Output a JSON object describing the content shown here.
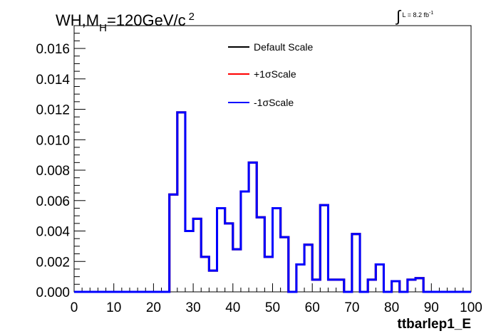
{
  "title": {
    "prefix": "WH,M",
    "subscript": "H",
    "suffix": "=120GeV/c",
    "superscript": "2"
  },
  "luminosity": {
    "integral": "∫",
    "label": "L = 8.2 fb",
    "superscript": "-1"
  },
  "colors": {
    "default": "#000000",
    "plus": "#ff0000",
    "minus": "#0000ff"
  },
  "legend": [
    {
      "label": "Default Scale",
      "color": "#000000"
    },
    {
      "label": "+1σScale",
      "color": "#ff0000"
    },
    {
      "label": "-1σScale",
      "color": "#0000ff"
    }
  ],
  "chart_data": {
    "type": "line",
    "histogram": true,
    "xlabel": "ttbarlep1_E",
    "ylabel": "",
    "xlim": [
      0,
      100
    ],
    "ylim": [
      0,
      0.0175
    ],
    "xticks": [
      "0",
      "10",
      "20",
      "30",
      "40",
      "50",
      "60",
      "70",
      "80",
      "90",
      "100"
    ],
    "yticks": [
      "0.000",
      "0.002",
      "0.004",
      "0.006",
      "0.008",
      "0.010",
      "0.012",
      "0.014",
      "0.016"
    ],
    "bin_edges": [
      0,
      2,
      4,
      6,
      8,
      10,
      12,
      14,
      16,
      18,
      20,
      22,
      24,
      26,
      28,
      30,
      32,
      34,
      36,
      38,
      40,
      42,
      44,
      46,
      48,
      50,
      52,
      54,
      56,
      58,
      60,
      62,
      64,
      66,
      68,
      70,
      72,
      74,
      76,
      78,
      80,
      82,
      84,
      86,
      88,
      90,
      92,
      94,
      96,
      98,
      100
    ],
    "series": [
      {
        "name": "Default Scale",
        "color": "#000000",
        "values": [
          0,
          0,
          0,
          0,
          0,
          0,
          0,
          0,
          0,
          0,
          0,
          0,
          0.0064,
          0.0118,
          0.004,
          0.0048,
          0.0023,
          0.0014,
          0.0055,
          0.0045,
          0.0028,
          0.0066,
          0.0085,
          0.0049,
          0.0023,
          0.0055,
          0.0036,
          0.0,
          0.0018,
          0.0031,
          0.0008,
          0.0057,
          0.0008,
          0.0008,
          0.0,
          0.0038,
          0.0,
          0.0008,
          0.0018,
          0.0,
          0.0007,
          0.0,
          0.0008,
          0.0009,
          0,
          0,
          0,
          0,
          0,
          0
        ]
      },
      {
        "name": "+1σScale",
        "color": "#ff0000",
        "values": [
          0,
          0,
          0,
          0,
          0,
          0,
          0,
          0,
          0,
          0,
          0,
          0,
          0.0064,
          0.0118,
          0.004,
          0.0048,
          0.0023,
          0.0014,
          0.0055,
          0.0045,
          0.0028,
          0.0066,
          0.0085,
          0.0049,
          0.0023,
          0.0055,
          0.0036,
          0.0,
          0.0018,
          0.0031,
          0.0008,
          0.0057,
          0.0008,
          0.0008,
          0.0,
          0.0038,
          0.0,
          0.0008,
          0.0018,
          0.0,
          0.0007,
          0.0,
          0.0008,
          0.0009,
          0,
          0,
          0,
          0,
          0,
          0
        ]
      },
      {
        "name": "-1σScale",
        "color": "#0000ff",
        "values": [
          0,
          0,
          0,
          0,
          0,
          0,
          0,
          0,
          0,
          0,
          0,
          0,
          0.0064,
          0.0118,
          0.004,
          0.0048,
          0.0023,
          0.0014,
          0.0055,
          0.0045,
          0.0028,
          0.0066,
          0.0085,
          0.0049,
          0.0023,
          0.0055,
          0.0036,
          0.0,
          0.0018,
          0.0031,
          0.0008,
          0.0057,
          0.0008,
          0.0008,
          0.0,
          0.0038,
          0.0,
          0.0008,
          0.0018,
          0.0,
          0.0007,
          0.0,
          0.0008,
          0.0009,
          0,
          0,
          0,
          0,
          0,
          0
        ]
      }
    ]
  }
}
